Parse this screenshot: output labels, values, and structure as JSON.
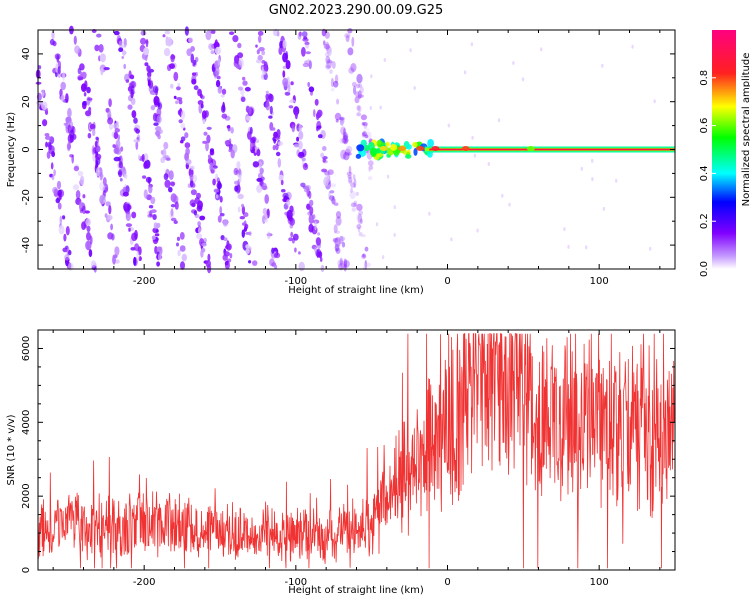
{
  "title": "GN02.2023.290.00.09.G25",
  "chart_data": [
    {
      "type": "heatmap",
      "xlabel": "Height of straight line (km)",
      "ylabel": "Frequency (Hz)",
      "xlim": [
        -270,
        150
      ],
      "ylim": [
        -50,
        50
      ],
      "x_ticks": [
        -200,
        -100,
        0,
        100
      ],
      "y_ticks": [
        -40,
        -20,
        0,
        20,
        40
      ],
      "colorbar": {
        "label": "Normalized spectral amplitude",
        "range": [
          0,
          1
        ],
        "ticks": [
          0.0,
          0.2,
          0.4,
          0.6,
          0.8
        ],
        "tick_labels": [
          "0.0",
          "0.2",
          "0.4",
          "0.6",
          "0.8"
        ],
        "colormap": "white-purple-blue-cyan-green-yellow-red-magenta"
      },
      "features": {
        "diagonal_streaks_x_range": [
          -270,
          -60
        ],
        "tone_line_frequency_hz": 0,
        "tone_line_x_range": [
          -60,
          150
        ],
        "tone_line_amplitude": 0.9
      }
    },
    {
      "type": "line",
      "xlabel": "Height of straight line (km)",
      "ylabel": "SNR (10 * v/v)",
      "xlim": [
        -270,
        150
      ],
      "ylim": [
        0,
        6500
      ],
      "x_ticks": [
        -200,
        -100,
        0,
        100
      ],
      "y_ticks": [
        0,
        2000,
        4000,
        6000
      ],
      "series": [
        {
          "color": "#f03232",
          "x": [
            -270,
            -250,
            -230,
            -210,
            -190,
            -170,
            -150,
            -130,
            -110,
            -90,
            -70,
            -50,
            -40,
            -30,
            -20,
            -10,
            0,
            10,
            20,
            30,
            40,
            50,
            60,
            80,
            100,
            120,
            140,
            150
          ],
          "y": [
            1200,
            1250,
            1150,
            1200,
            1250,
            1150,
            1100,
            1000,
            1000,
            950,
            1050,
            1300,
            1900,
            2600,
            3100,
            3500,
            4200,
            4700,
            5200,
            5400,
            5300,
            4900,
            4300,
            3900,
            4000,
            3900,
            3700,
            3900
          ]
        }
      ]
    }
  ]
}
